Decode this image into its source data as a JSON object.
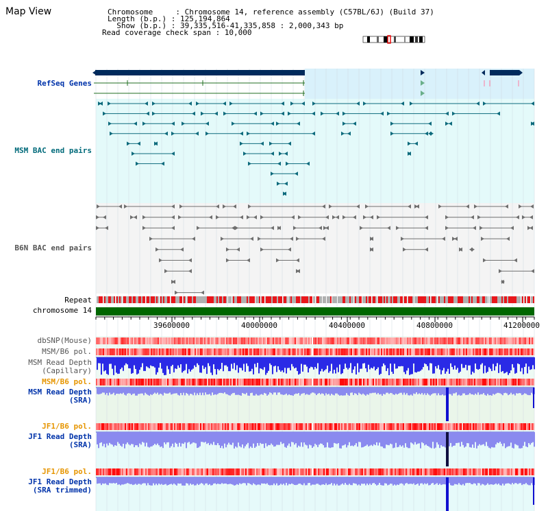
{
  "header": {
    "title": "Map View",
    "line1": "Chromosome     : Chromosome 14, reference assembly (C57BL/6J) (Build 37)",
    "line2": "Length (b.p.) : 125,194,864",
    "line3": "  Show (b.p.) : 39,335,516-41,335,858 : 2,000,343 bp",
    "line4": "Read coverage check span : 10,000"
  },
  "tracks": {
    "refseq": "RefSeq Genes",
    "msm_bac": "MSM BAC end pairs",
    "b6n_bac": "B6N BAC end pairs",
    "repeat": "Repeat",
    "chromosome": "chromosome 14",
    "dbsnp": "dbSNP(Mouse)",
    "msm_b6_pol": "MSM/B6 pol.",
    "msm_depth_cap_1": "MSM Read Depth",
    "msm_depth_cap_2": "(Capillary)",
    "msm_b6_pol_2": "MSM/B6 pol.",
    "msm_depth_sra_1": "MSM Read Depth",
    "msm_depth_sra_2": "(SRA)",
    "jf1_pol_1": "JF1/B6 pol.",
    "jf1_depth_1": "JF1 Read Depth",
    "jf1_depth_2": "(SRA)",
    "jf1_pol_2": "JF1/B6 pol.",
    "jf1_depth_trim_1": "JF1 Read Depth",
    "jf1_depth_trim_2": "(SRA trimmed)"
  },
  "axis": {
    "ticks": [
      "39600000",
      "40000000",
      "40400000",
      "40800000",
      "41200000"
    ]
  },
  "colors": {
    "refseq_bg": "#d9f1fb",
    "bac_bg": "#e4fafa",
    "b6n_bg": "#f4f4f4",
    "gene_dark": "#002a5c",
    "msm_teal": "#0c6a7c",
    "chromosome_green": "#006600",
    "depth_blue": "#1a1ae6",
    "depth_light": "#8a8aef"
  }
}
